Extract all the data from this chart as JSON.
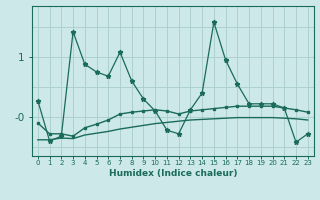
{
  "x": [
    0,
    1,
    2,
    3,
    4,
    5,
    6,
    7,
    8,
    9,
    10,
    11,
    12,
    13,
    14,
    15,
    16,
    17,
    18,
    19,
    20,
    21,
    22,
    23
  ],
  "line_main": [
    0.27,
    -0.4,
    -0.32,
    1.42,
    0.88,
    0.75,
    0.68,
    1.08,
    0.6,
    0.3,
    0.1,
    -0.22,
    -0.28,
    0.12,
    0.4,
    1.58,
    0.95,
    0.55,
    0.22,
    0.22,
    0.22,
    0.15,
    -0.42,
    -0.28
  ],
  "line_mid": [
    -0.1,
    -0.28,
    -0.28,
    -0.32,
    -0.18,
    -0.12,
    -0.05,
    0.05,
    0.08,
    0.1,
    0.12,
    0.1,
    0.05,
    0.1,
    0.12,
    0.14,
    0.16,
    0.18,
    0.18,
    0.18,
    0.18,
    0.15,
    0.12,
    0.08
  ],
  "line_low": [
    -0.38,
    -0.38,
    -0.35,
    -0.36,
    -0.3,
    -0.27,
    -0.24,
    -0.2,
    -0.17,
    -0.14,
    -0.11,
    -0.09,
    -0.07,
    -0.05,
    -0.04,
    -0.03,
    -0.02,
    -0.01,
    -0.01,
    -0.01,
    -0.01,
    -0.02,
    -0.03,
    -0.05
  ],
  "bg_color": "#cce8e8",
  "line_color": "#1a6b5a",
  "grid_color": "#aacccc",
  "xlabel": "Humidex (Indice chaleur)",
  "ylim": [
    -0.65,
    1.85
  ],
  "xlim": [
    -0.5,
    23.5
  ],
  "ytick_positions": [
    0.0,
    1.0
  ],
  "ytick_labels": [
    "-0",
    "1"
  ],
  "grid_h": [
    -0.5,
    0.0,
    0.5,
    1.0,
    1.5
  ]
}
